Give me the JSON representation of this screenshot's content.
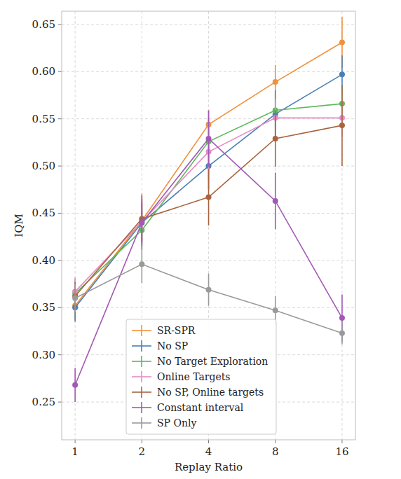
{
  "chart_data": {
    "type": "line",
    "x_label": "Replay Ratio",
    "y_label": "IQM",
    "x": [
      1,
      2,
      4,
      8,
      16
    ],
    "xlim": [
      0.87,
      18.38
    ],
    "xticks": [
      1,
      2,
      4,
      8,
      16
    ],
    "log": "x",
    "ylim": [
      0.21,
      0.664
    ],
    "yticks": [
      0.25,
      {
        "value": 0.3,
        "label": "0.30"
      },
      0.35,
      {
        "value": 0.4,
        "label": "0.40"
      },
      0.45,
      {
        "value": 0.5,
        "label": "0.50"
      },
      0.55,
      {
        "value": 0.6,
        "label": "0.60"
      },
      0.65
    ],
    "grid": true,
    "legend": "lower center",
    "marker": "circle",
    "series": [
      {
        "name": "SR-SPR",
        "color": "#f0913b",
        "values": [
          0.352,
          0.442,
          0.544,
          0.589,
          0.631
        ],
        "errors": [
          0.015,
          0.02,
          0.015,
          0.018,
          0.027
        ]
      },
      {
        "name": "No SP",
        "color": "#4a7fb5",
        "values": [
          0.35,
          0.44,
          0.5,
          0.555,
          0.597
        ],
        "errors": [
          0.015,
          0.02,
          0.025,
          0.025,
          0.02
        ]
      },
      {
        "name": "No Target Exploration",
        "color": "#5cb85c",
        "values": [
          0.365,
          0.432,
          0.526,
          0.559,
          0.566
        ],
        "errors": [
          0.015,
          0.02,
          0.025,
          0.02,
          0.02
        ]
      },
      {
        "name": "Online Targets",
        "color": "#e88ac6",
        "values": [
          0.367,
          0.441,
          0.515,
          0.551,
          0.551
        ],
        "errors": [
          0.015,
          0.03,
          0.03,
          0.02,
          0.02
        ]
      },
      {
        "name": "No SP, Online targets",
        "color": "#a8643f",
        "values": [
          0.362,
          0.444,
          0.467,
          0.529,
          0.543
        ],
        "errors": [
          0.015,
          0.025,
          0.03,
          0.03,
          0.043
        ]
      },
      {
        "name": "Constant interval",
        "color": "#a259b5",
        "values": [
          0.268,
          0.44,
          0.529,
          0.463,
          0.339
        ],
        "errors": [
          0.018,
          0.025,
          0.03,
          0.03,
          0.025
        ]
      },
      {
        "name": "SP Only",
        "color": "#9a9a9a",
        "values": [
          0.36,
          0.396,
          0.369,
          0.347,
          0.323
        ],
        "errors": [
          0.015,
          0.02,
          0.017,
          0.015,
          0.012
        ]
      }
    ]
  }
}
